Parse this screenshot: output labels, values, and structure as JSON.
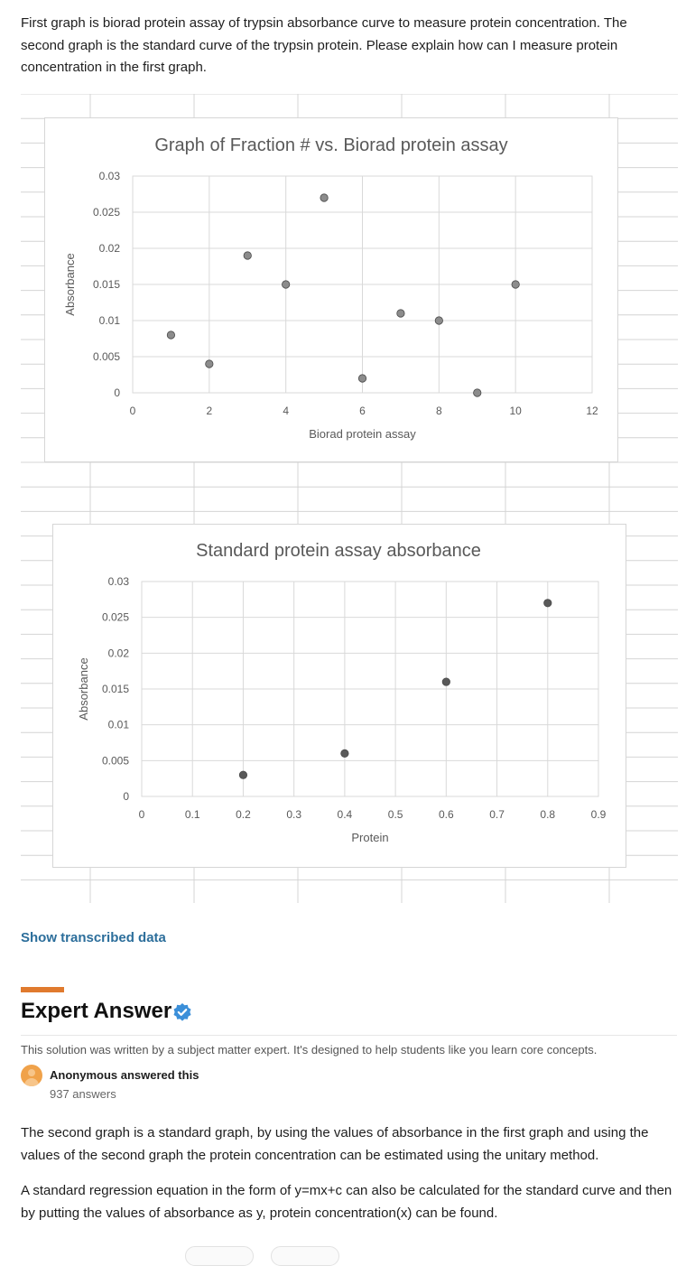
{
  "question": {
    "text": "First graph is biorad protein assay of trypsin absorbance curve to measure protein concentration. The second graph is the standard curve of the trypsin protein. Please explain how can I measure protein concentration in the first graph."
  },
  "chart_data": [
    {
      "type": "scatter",
      "title": "Graph of Fraction # vs. Biorad protein assay",
      "xlabel": "Biorad protein assay",
      "ylabel": "Absorbance",
      "xlim": [
        0,
        12
      ],
      "ylim": [
        0,
        0.03
      ],
      "x_ticks": [
        "0",
        "2",
        "4",
        "6",
        "8",
        "10",
        "12"
      ],
      "y_ticks": [
        "0",
        "0.005",
        "0.01",
        "0.015",
        "0.02",
        "0.025",
        "0.03"
      ],
      "grid": true,
      "points": [
        {
          "x": 1,
          "y": 0.008
        },
        {
          "x": 2,
          "y": 0.004
        },
        {
          "x": 3,
          "y": 0.019
        },
        {
          "x": 4,
          "y": 0.015
        },
        {
          "x": 5,
          "y": 0.027
        },
        {
          "x": 6,
          "y": 0.002
        },
        {
          "x": 7,
          "y": 0.011
        },
        {
          "x": 8,
          "y": 0.01
        },
        {
          "x": 9,
          "y": 0.0
        },
        {
          "x": 10,
          "y": 0.015
        }
      ],
      "marker_color": "#8c8c8c"
    },
    {
      "type": "scatter",
      "title": "Standard protein assay absorbance",
      "xlabel": "Protein",
      "ylabel": "Absorbance",
      "xlim": [
        0,
        0.9
      ],
      "ylim": [
        0,
        0.03
      ],
      "x_ticks": [
        "0",
        "0.1",
        "0.2",
        "0.3",
        "0.4",
        "0.5",
        "0.6",
        "0.7",
        "0.8",
        "0.9"
      ],
      "y_ticks": [
        "0",
        "0.005",
        "0.01",
        "0.015",
        "0.02",
        "0.025",
        "0.03"
      ],
      "grid": true,
      "points": [
        {
          "x": 0.2,
          "y": 0.003
        },
        {
          "x": 0.4,
          "y": 0.006
        },
        {
          "x": 0.6,
          "y": 0.016
        },
        {
          "x": 0.8,
          "y": 0.027
        }
      ],
      "marker_color": "#595959"
    }
  ],
  "show_transcribed": "Show transcribed data",
  "expert": {
    "title": "Expert Answer",
    "subtitle": "This solution was written by a subject matter expert. It's designed to help students like you learn core concepts.",
    "answerer": "Anonymous answered this",
    "answers_count": "937 answers",
    "verified_icon": "verified-badge-icon",
    "accent_color": "#e07a2e"
  },
  "answer": {
    "p1": "The second graph is a standard graph, by using the values of absorbance in the first graph and using the values of the second graph the protein concentration can be estimated using the unitary method.",
    "p2": "A standard regression equation in the form of y=mx+c can also be calculated for the standard curve and then by putting the values of absorbance as y, protein concentration(x) can be found."
  }
}
